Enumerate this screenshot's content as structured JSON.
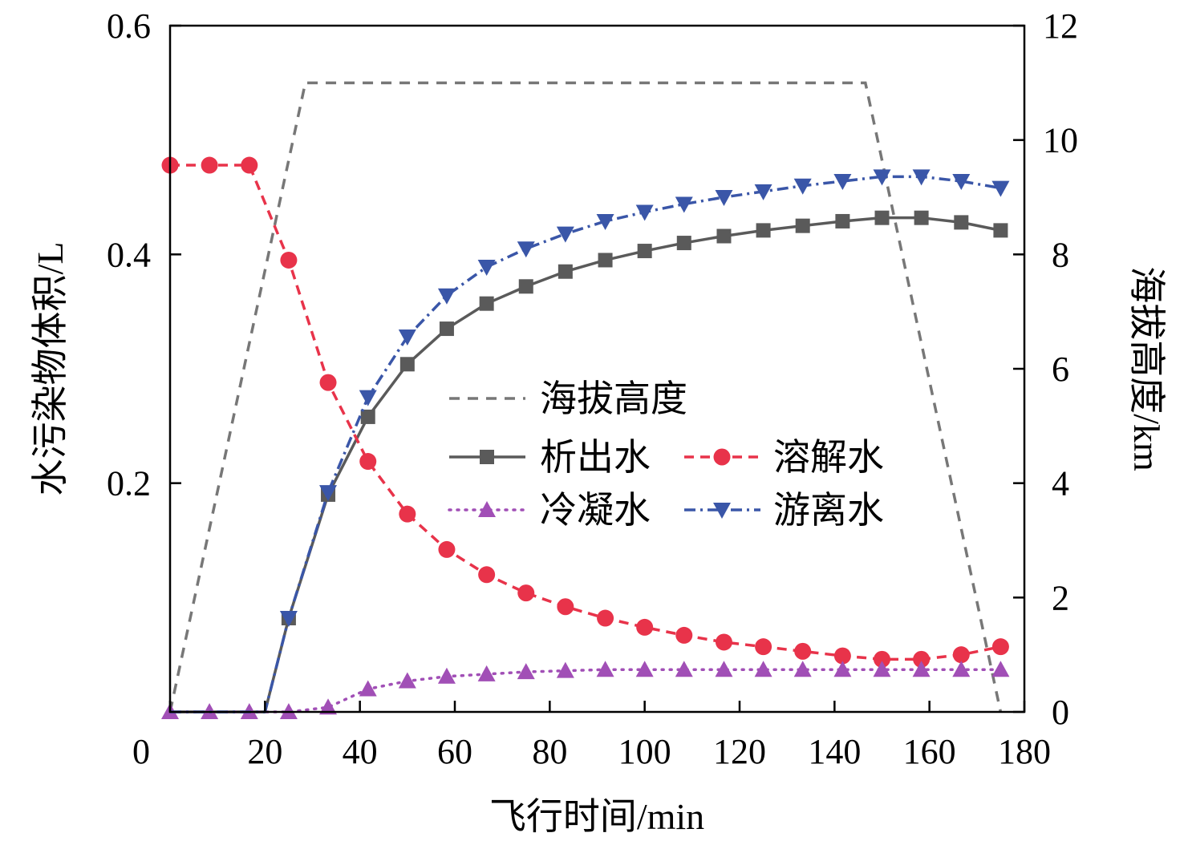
{
  "chart_data": {
    "type": "line",
    "xlabel": "飞行时间/min",
    "ylabel_left": "水污染物体积/L",
    "ylabel_right": "海拔高度/km",
    "xlim": [
      0,
      180
    ],
    "ylim_left": [
      0,
      0.6
    ],
    "ylim_right": [
      0,
      12
    ],
    "x_ticks": [
      "0",
      "20",
      "40",
      "60",
      "80",
      "100",
      "120",
      "140",
      "160",
      "180"
    ],
    "y_left_ticks": [
      "0.2",
      "0.4",
      "0.6"
    ],
    "y_right_ticks": [
      "0",
      "2",
      "4",
      "6",
      "8",
      "10",
      "12"
    ],
    "grid": false,
    "legend_placement": "center",
    "altitude": {
      "name": "海拔高度",
      "color": "#777777",
      "axis": "right",
      "style": "dashed",
      "x": [
        0,
        28.5,
        146.5,
        175
      ],
      "y": [
        0,
        11,
        11,
        0
      ]
    },
    "series": [
      {
        "name": "析出水",
        "color": "#5a5a5a",
        "marker": "square",
        "style": "solid",
        "x": [
          0,
          8.3,
          16.7,
          20,
          25,
          33.3,
          41.7,
          50,
          58.3,
          66.7,
          75,
          83.3,
          91.7,
          100,
          108.3,
          116.7,
          125,
          133.3,
          141.7,
          150,
          158.3,
          166.7,
          175
        ],
        "y": [
          0,
          0,
          0,
          0,
          0.082,
          0.19,
          0.258,
          0.304,
          0.335,
          0.357,
          0.372,
          0.385,
          0.395,
          0.403,
          0.41,
          0.416,
          0.421,
          0.425,
          0.429,
          0.432,
          0.432,
          0.428,
          0.421
        ],
        "marker_x": [
          25,
          33.3,
          41.7,
          50,
          58.3,
          66.7,
          75,
          83.3,
          91.7,
          100,
          108.3,
          116.7,
          125,
          133.3,
          141.7,
          150,
          158.3,
          166.7,
          175
        ]
      },
      {
        "name": "溶解水",
        "color": "#e8334a",
        "marker": "circle",
        "style": "dashed",
        "x": [
          0,
          8.3,
          16.7,
          25,
          33.3,
          41.7,
          50,
          58.3,
          66.7,
          75,
          83.3,
          91.7,
          100,
          108.3,
          116.7,
          125,
          133.3,
          141.7,
          150,
          158.3,
          166.7,
          175
        ],
        "y": [
          0.478,
          0.478,
          0.478,
          0.395,
          0.288,
          0.219,
          0.173,
          0.142,
          0.12,
          0.104,
          0.092,
          0.082,
          0.074,
          0.067,
          0.061,
          0.057,
          0.053,
          0.049,
          0.046,
          0.046,
          0.05,
          0.057
        ],
        "marker_x": [
          0,
          8.3,
          16.7,
          25,
          33.3,
          41.7,
          50,
          58.3,
          66.7,
          75,
          83.3,
          91.7,
          100,
          108.3,
          116.7,
          125,
          133.3,
          141.7,
          150,
          158.3,
          166.7,
          175
        ]
      },
      {
        "name": "冷凝水",
        "color": "#a14fb6",
        "marker": "triangle-up",
        "style": "dotted",
        "x": [
          0,
          8.3,
          16.7,
          25,
          33.3,
          41.7,
          50,
          58.3,
          66.7,
          75,
          83.3,
          91.7,
          100,
          108.3,
          116.7,
          125,
          133.3,
          141.7,
          150,
          158.3,
          166.7,
          175
        ],
        "y": [
          0,
          0,
          0,
          0,
          0.004,
          0.02,
          0.027,
          0.031,
          0.033,
          0.035,
          0.036,
          0.037,
          0.037,
          0.037,
          0.037,
          0.037,
          0.037,
          0.037,
          0.037,
          0.037,
          0.037,
          0.037
        ],
        "marker_x": [
          0,
          8.3,
          16.7,
          25,
          33.3,
          41.7,
          50,
          58.3,
          66.7,
          75,
          83.3,
          91.7,
          100,
          108.3,
          116.7,
          125,
          133.3,
          141.7,
          150,
          158.3,
          166.7,
          175
        ]
      },
      {
        "name": "游离水",
        "color": "#3a56a8",
        "marker": "triangle-down",
        "style": "dashdot",
        "x": [
          0,
          8.3,
          16.7,
          20,
          25,
          33.3,
          41.7,
          50,
          58.3,
          66.7,
          75,
          83.3,
          91.7,
          100,
          108.3,
          116.7,
          125,
          133.3,
          141.7,
          150,
          158.3,
          166.7,
          175
        ],
        "y": [
          0,
          0,
          0,
          0,
          0.082,
          0.192,
          0.275,
          0.328,
          0.364,
          0.389,
          0.405,
          0.418,
          0.429,
          0.437,
          0.444,
          0.45,
          0.455,
          0.46,
          0.464,
          0.468,
          0.468,
          0.464,
          0.458
        ],
        "marker_x": [
          25,
          33.3,
          41.7,
          50,
          58.3,
          66.7,
          75,
          83.3,
          91.7,
          100,
          108.3,
          116.7,
          125,
          133.3,
          141.7,
          150,
          158.3,
          166.7,
          175
        ]
      }
    ]
  }
}
